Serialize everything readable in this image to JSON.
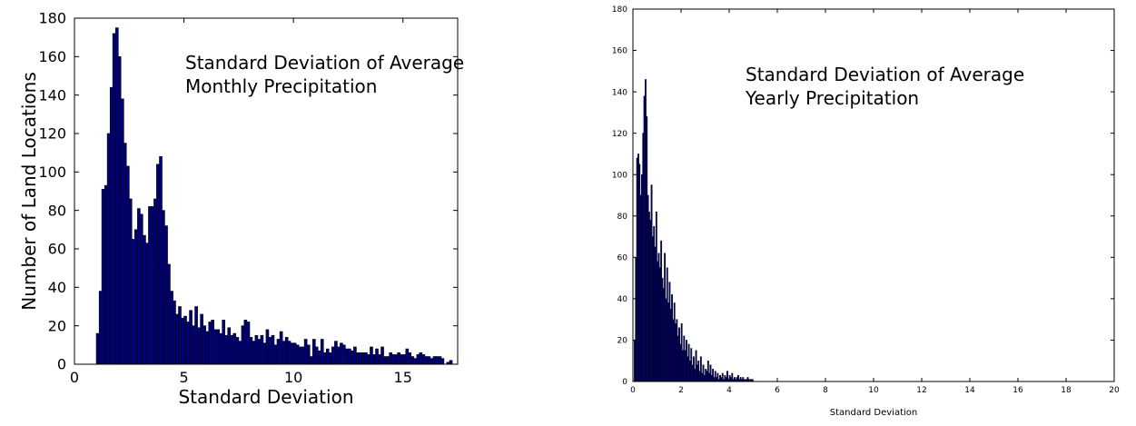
{
  "chart_data": [
    {
      "type": "bar",
      "annotation_lines": [
        "Standard Deviation of Average",
        "Monthly Precipitation"
      ],
      "xlabel": "Standard Deviation",
      "ylabel": "Number of Land Locations",
      "xlim": [
        0,
        17.5
      ],
      "ylim": [
        0,
        180
      ],
      "xticks": [
        0,
        5,
        10,
        15
      ],
      "yticks": [
        0,
        20,
        40,
        60,
        80,
        100,
        120,
        140,
        160,
        180
      ],
      "bar_color": "#00007f",
      "bin_width": 0.125,
      "x": [
        1.06,
        1.19,
        1.31,
        1.44,
        1.56,
        1.69,
        1.81,
        1.94,
        2.06,
        2.19,
        2.31,
        2.44,
        2.56,
        2.69,
        2.81,
        2.94,
        3.06,
        3.19,
        3.31,
        3.44,
        3.56,
        3.69,
        3.81,
        3.94,
        4.06,
        4.19,
        4.31,
        4.44,
        4.56,
        4.69,
        4.81,
        4.94,
        5.06,
        5.19,
        5.31,
        5.44,
        5.56,
        5.69,
        5.81,
        5.94,
        6.06,
        6.19,
        6.31,
        6.44,
        6.56,
        6.69,
        6.81,
        6.94,
        7.06,
        7.19,
        7.31,
        7.44,
        7.56,
        7.69,
        7.81,
        7.94,
        8.06,
        8.19,
        8.31,
        8.44,
        8.56,
        8.69,
        8.81,
        8.94,
        9.06,
        9.19,
        9.31,
        9.44,
        9.56,
        9.69,
        9.81,
        9.94,
        10.06,
        10.19,
        10.31,
        10.44,
        10.56,
        10.69,
        10.81,
        10.94,
        11.06,
        11.19,
        11.31,
        11.44,
        11.56,
        11.69,
        11.81,
        11.94,
        12.06,
        12.19,
        12.31,
        12.44,
        12.56,
        12.69,
        12.81,
        12.94,
        13.06,
        13.19,
        13.31,
        13.44,
        13.56,
        13.69,
        13.81,
        13.94,
        14.06,
        14.19,
        14.31,
        14.44,
        14.56,
        14.69,
        14.81,
        14.94,
        15.06,
        15.19,
        15.31,
        15.44,
        15.56,
        15.69,
        15.81,
        15.94,
        16.06,
        16.19,
        16.31,
        16.44,
        16.56,
        16.69,
        16.81,
        17.06,
        17.19
      ],
      "values": [
        16,
        38,
        91,
        93,
        120,
        144,
        172,
        175,
        160,
        138,
        115,
        103,
        86,
        65,
        70,
        81,
        78,
        67,
        63,
        82,
        82,
        86,
        104,
        108,
        80,
        72,
        52,
        38,
        33,
        26,
        30,
        24,
        25,
        22,
        28,
        20,
        30,
        19,
        26,
        20,
        17,
        22,
        23,
        18,
        18,
        16,
        23,
        15,
        19,
        15,
        16,
        14,
        12,
        20,
        23,
        22,
        14,
        12,
        15,
        13,
        15,
        11,
        18,
        14,
        15,
        10,
        13,
        17,
        12,
        14,
        12,
        11,
        11,
        10,
        9,
        9,
        13,
        10,
        4,
        13,
        9,
        7,
        13,
        6,
        8,
        6,
        9,
        12,
        9,
        11,
        10,
        8,
        8,
        7,
        9,
        6,
        6,
        6,
        6,
        5,
        9,
        5,
        8,
        5,
        9,
        4,
        4,
        6,
        5,
        5,
        6,
        5,
        5,
        8,
        6,
        4,
        3,
        5,
        6,
        5,
        4,
        4,
        3,
        4,
        4,
        4,
        3,
        1,
        2
      ],
      "value_note": ""
    },
    {
      "type": "bar",
      "annotation_lines": [
        "Standard Deviation of Average",
        "Yearly Precipitation"
      ],
      "xlabel": "Standard Deviation",
      "ylabel": "",
      "xlim": [
        0,
        20
      ],
      "ylim": [
        0,
        180
      ],
      "xticks": [
        0,
        2,
        4,
        6,
        8,
        10,
        12,
        14,
        16,
        18,
        20
      ],
      "yticks": [
        0,
        20,
        40,
        60,
        80,
        100,
        120,
        140,
        160,
        180
      ],
      "bar_color": "#00007f",
      "bin_width": 0.05,
      "x": [
        0.075,
        0.125,
        0.175,
        0.225,
        0.275,
        0.325,
        0.375,
        0.425,
        0.475,
        0.525,
        0.575,
        0.625,
        0.675,
        0.725,
        0.775,
        0.825,
        0.875,
        0.925,
        0.975,
        1.025,
        1.075,
        1.125,
        1.175,
        1.225,
        1.275,
        1.325,
        1.375,
        1.425,
        1.475,
        1.525,
        1.575,
        1.625,
        1.675,
        1.725,
        1.775,
        1.825,
        1.875,
        1.925,
        1.975,
        2.025,
        2.075,
        2.125,
        2.175,
        2.225,
        2.275,
        2.325,
        2.375,
        2.425,
        2.475,
        2.525,
        2.575,
        2.625,
        2.675,
        2.725,
        2.775,
        2.825,
        2.875,
        2.925,
        2.975,
        3.025,
        3.075,
        3.125,
        3.175,
        3.225,
        3.275,
        3.325,
        3.375,
        3.425,
        3.475,
        3.525,
        3.575,
        3.625,
        3.675,
        3.725,
        3.775,
        3.825,
        3.875,
        3.925,
        3.975,
        4.025,
        4.075,
        4.125,
        4.175,
        4.225,
        4.275,
        4.325,
        4.375,
        4.425,
        4.475,
        4.525,
        4.575,
        4.625,
        4.675,
        4.725,
        4.775,
        4.825,
        4.875,
        4.925,
        4.975
      ],
      "values": [
        20,
        60,
        108,
        110,
        105,
        90,
        100,
        120,
        138,
        146,
        128,
        90,
        82,
        78,
        95,
        70,
        75,
        65,
        82,
        58,
        62,
        55,
        68,
        50,
        45,
        62,
        40,
        55,
        38,
        48,
        35,
        42,
        30,
        38,
        28,
        30,
        22,
        26,
        18,
        28,
        15,
        22,
        15,
        20,
        12,
        18,
        10,
        16,
        8,
        12,
        6,
        15,
        8,
        10,
        5,
        12,
        4,
        8,
        3,
        6,
        5,
        10,
        4,
        8,
        3,
        6,
        2,
        5,
        2,
        4,
        1,
        3,
        2,
        4,
        1,
        3,
        2,
        5,
        1,
        3,
        2,
        4,
        1,
        2,
        1,
        2,
        3,
        1,
        2,
        1,
        2,
        1,
        1,
        1,
        2,
        1,
        1,
        1,
        1
      ],
      "value_note": ""
    }
  ]
}
